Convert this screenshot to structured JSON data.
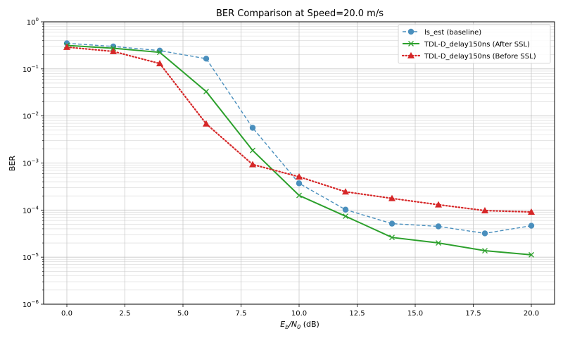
{
  "chart_data": {
    "type": "line",
    "title": "BER Comparison at Speed=20.0 m/s",
    "xlabel": "E_b/N_0 (dB)",
    "xlabel_parts": {
      "main": "E",
      "sub1": "b",
      "slash": "/N",
      "sub2": "0",
      "unit": " (dB)"
    },
    "ylabel": "BER",
    "yscale": "log",
    "xlim": [
      -1.0,
      21.0
    ],
    "ylim": [
      1e-06,
      1
    ],
    "xticks": [
      0.0,
      2.5,
      5.0,
      7.5,
      10.0,
      12.5,
      15.0,
      17.5,
      20.0
    ],
    "xtick_labels": [
      "0.0",
      "2.5",
      "5.0",
      "7.5",
      "10.0",
      "12.5",
      "15.0",
      "17.5",
      "20.0"
    ],
    "yticks": [
      0,
      -1,
      -2,
      -3,
      -4,
      -5,
      -6
    ],
    "ytick_base": "10",
    "grid": true,
    "legend_position": "top-right",
    "x": [
      0,
      2,
      4,
      6,
      8,
      10,
      12,
      14,
      16,
      18,
      20
    ],
    "series": [
      {
        "name": "ls_est (baseline)",
        "color": "#4a8fbd",
        "style": "dashed",
        "marker": "circle",
        "values": [
          0.35,
          0.3,
          0.245,
          0.165,
          0.0056,
          0.00037,
          0.000102,
          5.15e-05,
          4.5e-05,
          3.2e-05,
          4.65e-05
        ]
      },
      {
        "name": "TDL-D_delay150ns (After SSL)",
        "color": "#2ca02c",
        "style": "solid",
        "marker": "x",
        "values": [
          0.315,
          0.275,
          0.225,
          0.033,
          0.00185,
          0.000205,
          7.4e-05,
          2.62e-05,
          2e-05,
          1.37e-05,
          1.12e-05
        ]
      },
      {
        "name": "TDL-D_delay150ns (Before SSL)",
        "color": "#d62728",
        "style": "dotted",
        "marker": "triangle",
        "values": [
          0.29,
          0.235,
          0.13,
          0.0068,
          0.00093,
          0.00051,
          0.000245,
          0.000177,
          0.00013,
          9.75e-05,
          9.1e-05
        ]
      }
    ]
  }
}
